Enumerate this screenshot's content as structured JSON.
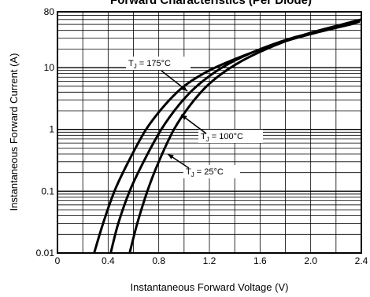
{
  "chart_data": {
    "type": "line",
    "title": "Forward Characteristics (Per Diode)",
    "xlabel": "Instantaneous Forward Voltage (V)",
    "ylabel": "Instantaneous Forward Current (A)",
    "xlim": [
      0,
      2.4
    ],
    "ylim": [
      0.01,
      80
    ],
    "y_scale": "log",
    "grid": true,
    "x_ticks": [
      "0",
      "0.4",
      "0.8",
      "1.2",
      "1.6",
      "2.0",
      "2.4"
    ],
    "x_tick_values": [
      0,
      0.4,
      0.8,
      1.2,
      1.6,
      2.0,
      2.4
    ],
    "y_ticks": [
      "0.01",
      "0.1",
      "1",
      "10",
      "80"
    ],
    "y_tick_values": [
      0.01,
      0.1,
      1,
      10,
      80
    ],
    "series": [
      {
        "name": "T_J = 175°C",
        "label_main": "T",
        "label_sub": "J",
        "label_rest": " = 175°C",
        "x": [
          0.29,
          0.36,
          0.45,
          0.56,
          0.7,
          0.85,
          1.0,
          1.2,
          1.45,
          1.75,
          2.05,
          2.35
        ],
        "y": [
          0.01,
          0.03,
          0.1,
          0.3,
          1.0,
          2.5,
          5.0,
          9.0,
          15,
          25,
          37,
          52
        ]
      },
      {
        "name": "T_J = 100°C",
        "label_main": "T",
        "label_sub": "J",
        "label_rest": " = 100°C",
        "x": [
          0.42,
          0.48,
          0.57,
          0.68,
          0.82,
          0.96,
          1.1,
          1.3,
          1.55,
          1.85,
          2.15,
          2.38
        ],
        "y": [
          0.01,
          0.03,
          0.1,
          0.3,
          1.0,
          2.5,
          5.0,
          10,
          18,
          30,
          42,
          55
        ]
      },
      {
        "name": "T_J = 25°C",
        "label_main": "T",
        "label_sub": "J",
        "label_rest": " = 25°C",
        "x": [
          0.57,
          0.63,
          0.71,
          0.8,
          0.92,
          1.05,
          1.2,
          1.4,
          1.65,
          1.95,
          2.25,
          2.4
        ],
        "y": [
          0.01,
          0.03,
          0.1,
          0.3,
          1.0,
          2.5,
          5.5,
          11,
          20,
          34,
          50,
          60
        ]
      }
    ]
  }
}
